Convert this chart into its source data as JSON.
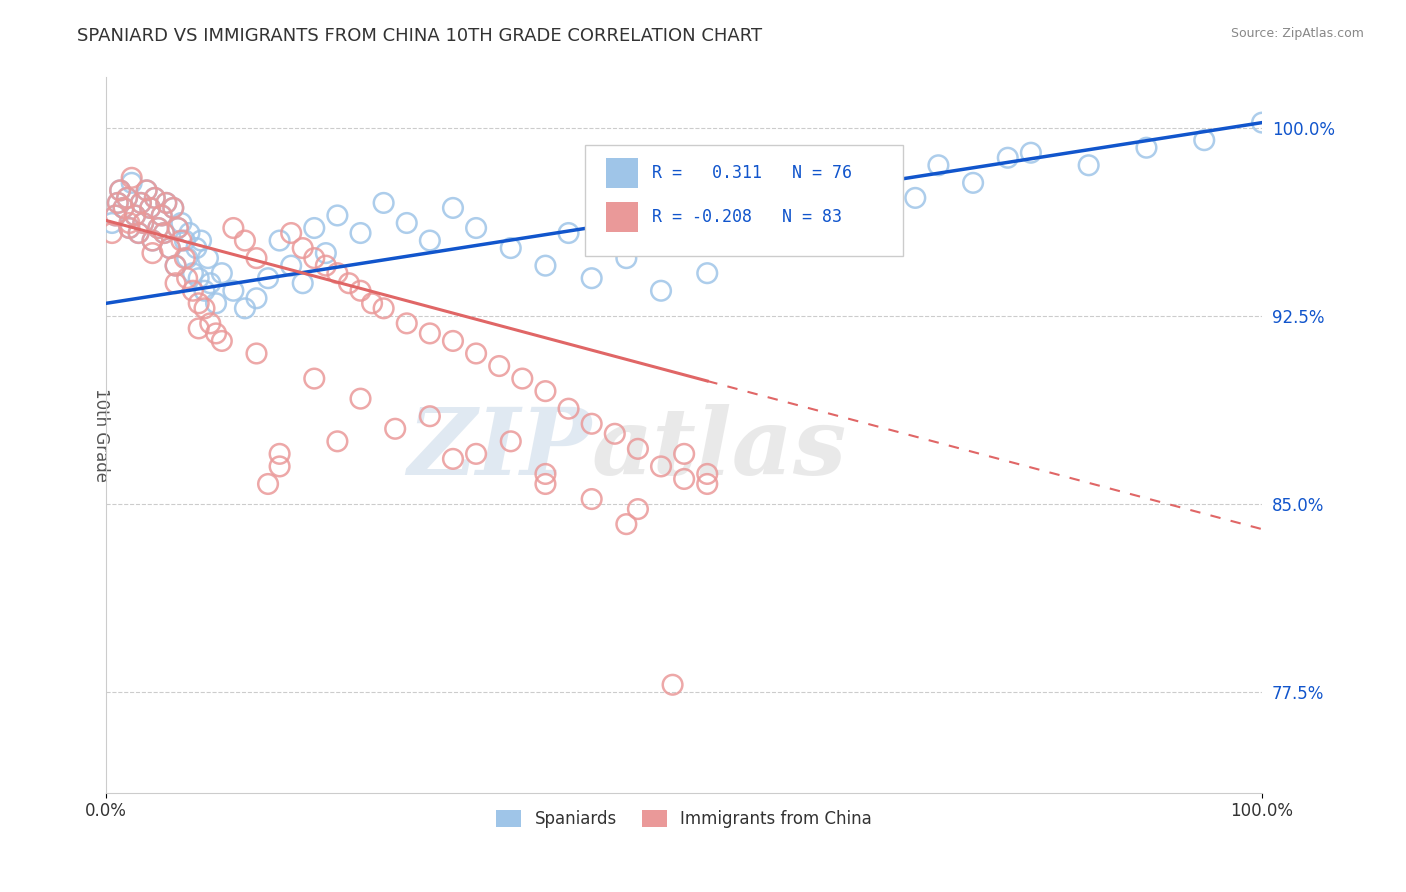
{
  "title": "SPANIARD VS IMMIGRANTS FROM CHINA 10TH GRADE CORRELATION CHART",
  "source_text": "Source: ZipAtlas.com",
  "ylabel": "10th Grade",
  "xlim": [
    0.0,
    1.0
  ],
  "ylim": [
    0.735,
    1.02
  ],
  "xtick_labels": [
    "0.0%",
    "100.0%"
  ],
  "xtick_positions": [
    0.0,
    1.0
  ],
  "ytick_labels": [
    "77.5%",
    "85.0%",
    "92.5%",
    "100.0%"
  ],
  "ytick_positions": [
    0.775,
    0.85,
    0.925,
    1.0
  ],
  "spaniards_color": "#9fc5e8",
  "china_color": "#ea9999",
  "spaniards_R": 0.311,
  "spaniards_N": 76,
  "china_R": -0.208,
  "china_N": 83,
  "trend_blue_color": "#1155cc",
  "trend_pink_color": "#e06666",
  "blue_text_color": "#1155cc",
  "watermark_zip": "ZIP",
  "watermark_atlas": "atlas",
  "legend_label_spaniards": "Spaniards",
  "legend_label_china": "Immigrants from China",
  "background_color": "#ffffff",
  "trend_blue_x0": 0.0,
  "trend_blue_y0": 0.93,
  "trend_blue_x1": 1.0,
  "trend_blue_y1": 1.002,
  "trend_pink_x0": 0.0,
  "trend_pink_y0": 0.963,
  "trend_pink_x1": 1.0,
  "trend_pink_y1": 0.84,
  "trend_pink_solid_end": 0.52,
  "spaniards_x": [
    0.005,
    0.008,
    0.01,
    0.012,
    0.015,
    0.018,
    0.02,
    0.022,
    0.025,
    0.028,
    0.03,
    0.032,
    0.035,
    0.038,
    0.04,
    0.042,
    0.045,
    0.048,
    0.05,
    0.052,
    0.055,
    0.058,
    0.06,
    0.062,
    0.065,
    0.068,
    0.07,
    0.072,
    0.075,
    0.078,
    0.08,
    0.082,
    0.085,
    0.088,
    0.09,
    0.095,
    0.1,
    0.11,
    0.12,
    0.13,
    0.14,
    0.15,
    0.16,
    0.17,
    0.18,
    0.19,
    0.2,
    0.22,
    0.24,
    0.26,
    0.28,
    0.3,
    0.32,
    0.35,
    0.38,
    0.4,
    0.42,
    0.45,
    0.48,
    0.5,
    0.52,
    0.55,
    0.58,
    0.6,
    0.62,
    0.65,
    0.68,
    0.7,
    0.72,
    0.75,
    0.78,
    0.8,
    0.85,
    0.9,
    0.95,
    1.0
  ],
  "spaniards_y": [
    0.962,
    0.965,
    0.97,
    0.975,
    0.968,
    0.972,
    0.96,
    0.978,
    0.965,
    0.958,
    0.97,
    0.962,
    0.975,
    0.968,
    0.955,
    0.972,
    0.96,
    0.965,
    0.958,
    0.97,
    0.952,
    0.968,
    0.945,
    0.96,
    0.962,
    0.955,
    0.948,
    0.958,
    0.942,
    0.952,
    0.94,
    0.955,
    0.935,
    0.948,
    0.938,
    0.93,
    0.942,
    0.935,
    0.928,
    0.932,
    0.94,
    0.955,
    0.945,
    0.938,
    0.96,
    0.95,
    0.965,
    0.958,
    0.97,
    0.962,
    0.955,
    0.968,
    0.96,
    0.952,
    0.945,
    0.958,
    0.94,
    0.948,
    0.935,
    0.96,
    0.942,
    0.965,
    0.97,
    0.958,
    0.975,
    0.968,
    0.98,
    0.972,
    0.985,
    0.978,
    0.988,
    0.99,
    0.985,
    0.992,
    0.995,
    1.002
  ],
  "china_x": [
    0.005,
    0.008,
    0.01,
    0.012,
    0.015,
    0.018,
    0.02,
    0.022,
    0.025,
    0.028,
    0.03,
    0.032,
    0.035,
    0.038,
    0.04,
    0.042,
    0.045,
    0.048,
    0.05,
    0.052,
    0.055,
    0.058,
    0.06,
    0.062,
    0.065,
    0.068,
    0.07,
    0.075,
    0.08,
    0.085,
    0.09,
    0.095,
    0.1,
    0.11,
    0.12,
    0.13,
    0.14,
    0.15,
    0.16,
    0.17,
    0.18,
    0.19,
    0.2,
    0.21,
    0.22,
    0.23,
    0.24,
    0.26,
    0.28,
    0.3,
    0.32,
    0.34,
    0.36,
    0.38,
    0.4,
    0.42,
    0.44,
    0.46,
    0.48,
    0.5,
    0.52,
    0.15,
    0.2,
    0.25,
    0.3,
    0.35,
    0.28,
    0.22,
    0.18,
    0.13,
    0.08,
    0.06,
    0.04,
    0.02,
    0.38,
    0.42,
    0.46,
    0.5,
    0.45,
    0.52,
    0.38,
    0.32,
    0.49
  ],
  "china_y": [
    0.958,
    0.965,
    0.97,
    0.975,
    0.968,
    0.972,
    0.96,
    0.98,
    0.965,
    0.958,
    0.97,
    0.962,
    0.975,
    0.968,
    0.955,
    0.972,
    0.96,
    0.965,
    0.958,
    0.97,
    0.952,
    0.968,
    0.945,
    0.96,
    0.955,
    0.948,
    0.94,
    0.935,
    0.93,
    0.928,
    0.922,
    0.918,
    0.915,
    0.96,
    0.955,
    0.948,
    0.858,
    0.865,
    0.958,
    0.952,
    0.948,
    0.945,
    0.942,
    0.938,
    0.935,
    0.93,
    0.928,
    0.922,
    0.918,
    0.915,
    0.91,
    0.905,
    0.9,
    0.895,
    0.888,
    0.882,
    0.878,
    0.872,
    0.865,
    0.87,
    0.862,
    0.87,
    0.875,
    0.88,
    0.868,
    0.875,
    0.885,
    0.892,
    0.9,
    0.91,
    0.92,
    0.938,
    0.95,
    0.962,
    0.858,
    0.852,
    0.848,
    0.86,
    0.842,
    0.858,
    0.862,
    0.87,
    0.778
  ]
}
